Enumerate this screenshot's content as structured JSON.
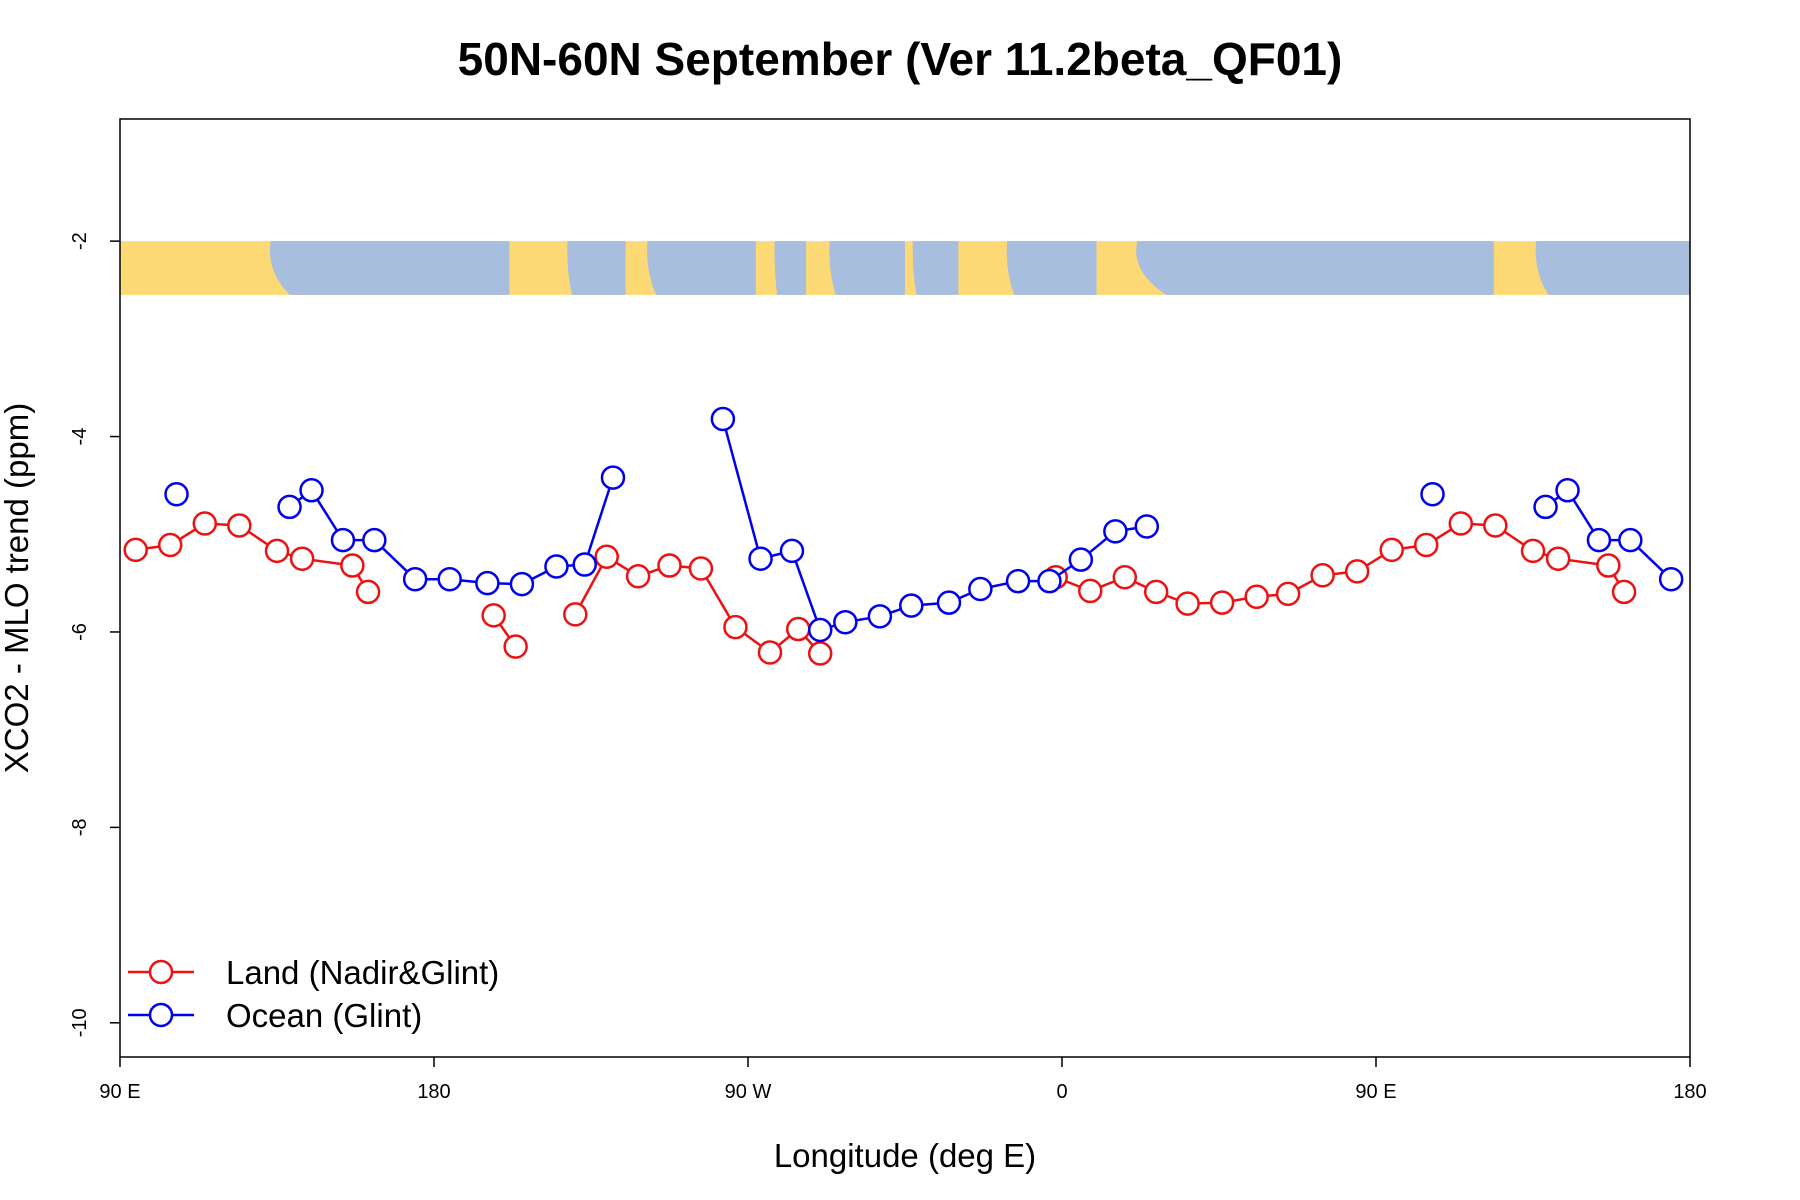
{
  "chart_data": {
    "type": "line",
    "title": "50N-60N September (Ver 11.2beta_QF01)",
    "xlabel": "Longitude (deg E)",
    "ylabel": "XCO2 - MLO trend (ppm)",
    "xlim": [
      90,
      590
    ],
    "ylim": [
      -10.35,
      -0.75
    ],
    "x_ticks": [
      {
        "value": 90,
        "label": "90 E"
      },
      {
        "value": 190,
        "label": "180"
      },
      {
        "value": 290,
        "label": "90 W"
      },
      {
        "value": 390,
        "label": "0"
      },
      {
        "value": 490,
        "label": "90 E"
      },
      {
        "value": 590,
        "label": "180"
      }
    ],
    "y_ticks": [
      {
        "value": -2,
        "label": "-2"
      },
      {
        "value": -4,
        "label": "-4"
      },
      {
        "value": -6,
        "label": "-6"
      },
      {
        "value": -8,
        "label": "-8"
      },
      {
        "value": -10,
        "label": "-10"
      }
    ],
    "map_band": {
      "y_top": -2.0,
      "y_bottom": -2.55,
      "land_color": "#FDD976",
      "ocean_color": "#A7BEDE"
    },
    "legend_position": "bottom-left",
    "series": [
      {
        "name": "Land (Nadir&Glint)",
        "color": "#EE1111",
        "segments": [
          [
            [
              95,
              -5.16
            ],
            [
              106,
              -5.11
            ],
            [
              117,
              -4.89
            ],
            [
              128,
              -4.91
            ],
            [
              140,
              -5.17
            ],
            [
              148,
              -5.25
            ],
            [
              164,
              -5.32
            ],
            [
              169,
              -5.59
            ]
          ],
          [
            [
              209,
              -5.83
            ],
            [
              216,
              -6.15
            ]
          ],
          [
            [
              235,
              -5.82
            ],
            [
              245,
              -5.23
            ],
            [
              255,
              -5.43
            ],
            [
              265,
              -5.32
            ],
            [
              275,
              -5.35
            ],
            [
              286,
              -5.95
            ],
            [
              297,
              -6.21
            ],
            [
              306,
              -5.97
            ],
            [
              313,
              -6.22
            ]
          ],
          [
            [
              388,
              -5.44
            ],
            [
              399,
              -5.58
            ],
            [
              410,
              -5.44
            ],
            [
              420,
              -5.59
            ],
            [
              430,
              -5.71
            ],
            [
              441,
              -5.7
            ],
            [
              452,
              -5.64
            ],
            [
              462,
              -5.61
            ],
            [
              473,
              -5.42
            ],
            [
              484,
              -5.38
            ],
            [
              495,
              -5.16
            ],
            [
              506,
              -5.11
            ],
            [
              517,
              -4.89
            ],
            [
              528,
              -4.91
            ],
            [
              540,
              -5.17
            ],
            [
              548,
              -5.25
            ],
            [
              564,
              -5.32
            ],
            [
              569,
              -5.59
            ]
          ]
        ]
      },
      {
        "name": "Ocean (Glint)",
        "color": "#0000EE",
        "segments": [
          [
            [
              108,
              -4.59
            ]
          ],
          [
            [
              144,
              -4.72
            ],
            [
              151,
              -4.55
            ],
            [
              161,
              -5.06
            ],
            [
              171,
              -5.06
            ],
            [
              184,
              -5.46
            ],
            [
              195,
              -5.46
            ],
            [
              207,
              -5.5
            ],
            [
              218,
              -5.51
            ],
            [
              229,
              -5.33
            ],
            [
              238,
              -5.31
            ],
            [
              247,
              -4.42
            ]
          ],
          [
            [
              282,
              -3.82
            ],
            [
              294,
              -5.25
            ],
            [
              304,
              -5.17
            ],
            [
              313,
              -5.98
            ],
            [
              321,
              -5.9
            ],
            [
              332,
              -5.84
            ],
            [
              342,
              -5.73
            ],
            [
              354,
              -5.7
            ],
            [
              364,
              -5.56
            ],
            [
              376,
              -5.48
            ],
            [
              386,
              -5.48
            ],
            [
              396,
              -5.26
            ],
            [
              407,
              -4.97
            ],
            [
              417,
              -4.92
            ]
          ],
          [
            [
              508,
              -4.59
            ]
          ],
          [
            [
              544,
              -4.72
            ],
            [
              551,
              -4.55
            ],
            [
              561,
              -5.06
            ],
            [
              571,
              -5.06
            ],
            [
              584,
              -5.46
            ]
          ]
        ]
      }
    ]
  }
}
